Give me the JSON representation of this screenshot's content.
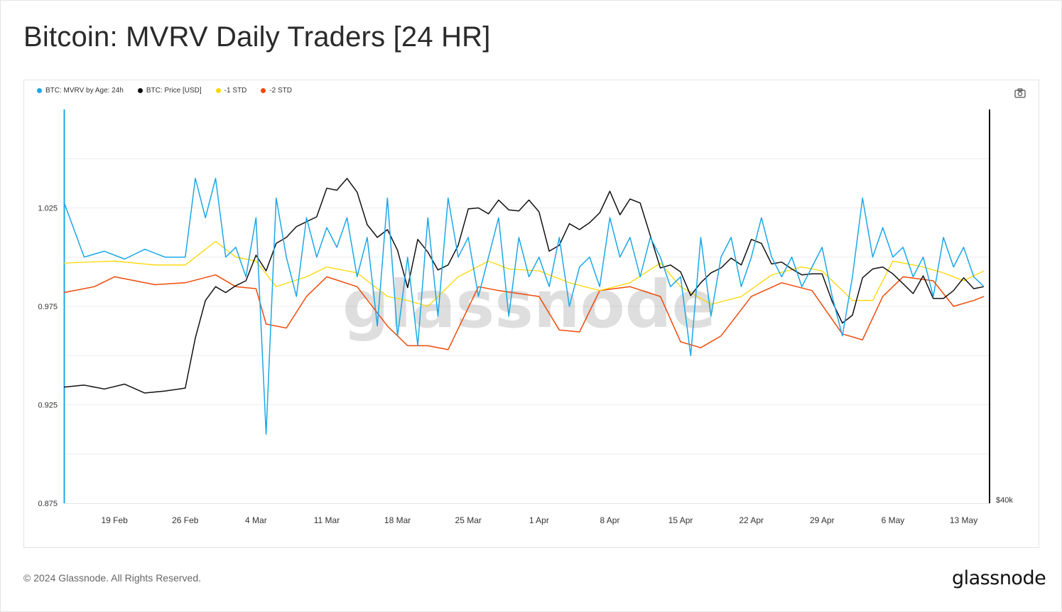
{
  "title": "Bitcoin: MVRV Daily Traders [24 HR]",
  "footer": {
    "copyright": "© 2024 Glassnode. All Rights Reserved.",
    "logo": "glassnode"
  },
  "watermark": "glassnode",
  "legend": [
    {
      "label": "BTC: MVRV by Age: 24h",
      "color": "#1aa8e8"
    },
    {
      "label": "BTC: Price [USD]",
      "color": "#111111"
    },
    {
      "label": "-1 STD",
      "color": "#ffd700"
    },
    {
      "label": "-2 STD",
      "color": "#f04a0a"
    }
  ],
  "icons": {
    "camera": "camera-icon"
  },
  "chart_data": {
    "type": "line",
    "x_ticks": [
      "19 Feb",
      "26 Feb",
      "4 Mar",
      "11 Mar",
      "18 Mar",
      "25 Mar",
      "1 Apr",
      "8 Apr",
      "15 Apr",
      "22 Apr",
      "29 Apr",
      "6 May",
      "13 May"
    ],
    "y_left_ticks": [
      "0.875",
      "0.925",
      "0.975",
      "1.025"
    ],
    "y_left_range": [
      0.875,
      1.075
    ],
    "y_right_ticks": [
      "$40k"
    ],
    "y_right_range": [
      40000,
      80000
    ],
    "x_range": [
      "14 Feb",
      "15 May"
    ],
    "grid": true,
    "legend_position": "top-left",
    "series": [
      {
        "name": "BTC: MVRV by Age: 24h",
        "axis": "left",
        "color": "#1aa8e8",
        "x": [
          "14 Feb",
          "16 Feb",
          "18 Feb",
          "20 Feb",
          "22 Feb",
          "24 Feb",
          "26 Feb",
          "27 Feb",
          "28 Feb",
          "29 Feb",
          "1 Mar",
          "2 Mar",
          "3 Mar",
          "4 Mar",
          "5 Mar",
          "6 Mar",
          "7 Mar",
          "8 Mar",
          "9 Mar",
          "10 Mar",
          "11 Mar",
          "12 Mar",
          "13 Mar",
          "14 Mar",
          "15 Mar",
          "16 Mar",
          "17 Mar",
          "18 Mar",
          "19 Mar",
          "20 Mar",
          "21 Mar",
          "22 Mar",
          "23 Mar",
          "24 Mar",
          "25 Mar",
          "26 Mar",
          "27 Mar",
          "28 Mar",
          "29 Mar",
          "30 Mar",
          "31 Mar",
          "1 Apr",
          "2 Apr",
          "3 Apr",
          "4 Apr",
          "5 Apr",
          "6 Apr",
          "7 Apr",
          "8 Apr",
          "9 Apr",
          "10 Apr",
          "11 Apr",
          "12 Apr",
          "13 Apr",
          "14 Apr",
          "15 Apr",
          "16 Apr",
          "17 Apr",
          "18 Apr",
          "19 Apr",
          "20 Apr",
          "21 Apr",
          "22 Apr",
          "23 Apr",
          "24 Apr",
          "25 Apr",
          "26 Apr",
          "27 Apr",
          "28 Apr",
          "29 Apr",
          "30 Apr",
          "1 May",
          "2 May",
          "3 May",
          "4 May",
          "5 May",
          "6 May",
          "7 May",
          "8 May",
          "9 May",
          "10 May",
          "11 May",
          "12 May",
          "13 May",
          "14 May",
          "15 May"
        ],
        "values": [
          1.028,
          1.0,
          1.003,
          0.999,
          1.004,
          1.0,
          1.0,
          1.04,
          1.02,
          1.04,
          1.0,
          1.005,
          0.99,
          1.02,
          0.91,
          1.03,
          1.0,
          0.98,
          1.02,
          1.0,
          1.015,
          1.005,
          1.02,
          0.99,
          1.01,
          0.965,
          1.03,
          0.96,
          1.0,
          0.955,
          1.02,
          0.97,
          1.03,
          1.0,
          1.01,
          0.98,
          1.0,
          1.02,
          0.97,
          1.01,
          0.99,
          1.0,
          0.985,
          1.01,
          0.975,
          0.995,
          1.0,
          0.985,
          1.02,
          1.0,
          1.01,
          0.99,
          1.01,
          1.0,
          0.985,
          0.99,
          0.95,
          1.01,
          0.97,
          1.0,
          1.01,
          0.985,
          1.0,
          1.02,
          1.0,
          0.99,
          1.0,
          0.985,
          0.995,
          1.005,
          0.98,
          0.96,
          0.99,
          1.03,
          1.0,
          1.015,
          1.0,
          1.005,
          0.99,
          1.0,
          0.98,
          1.01,
          0.995,
          1.005,
          0.99,
          0.985
        ]
      },
      {
        "name": "BTC: Price [USD]",
        "axis": "right",
        "color": "#111111",
        "x": [
          "14 Feb",
          "16 Feb",
          "18 Feb",
          "20 Feb",
          "22 Feb",
          "24 Feb",
          "26 Feb",
          "27 Feb",
          "28 Feb",
          "29 Feb",
          "1 Mar",
          "2 Mar",
          "3 Mar",
          "4 Mar",
          "5 Mar",
          "6 Mar",
          "7 Mar",
          "8 Mar",
          "9 Mar",
          "10 Mar",
          "11 Mar",
          "12 Mar",
          "13 Mar",
          "14 Mar",
          "15 Mar",
          "16 Mar",
          "17 Mar",
          "18 Mar",
          "19 Mar",
          "20 Mar",
          "21 Mar",
          "22 Mar",
          "23 Mar",
          "24 Mar",
          "25 Mar",
          "26 Mar",
          "27 Mar",
          "28 Mar",
          "29 Mar",
          "30 Mar",
          "31 Mar",
          "1 Apr",
          "2 Apr",
          "3 Apr",
          "4 Apr",
          "5 Apr",
          "6 Apr",
          "7 Apr",
          "8 Apr",
          "9 Apr",
          "10 Apr",
          "11 Apr",
          "12 Apr",
          "13 Apr",
          "14 Apr",
          "15 Apr",
          "16 Apr",
          "17 Apr",
          "18 Apr",
          "19 Apr",
          "20 Apr",
          "21 Apr",
          "22 Apr",
          "23 Apr",
          "24 Apr",
          "25 Apr",
          "26 Apr",
          "27 Apr",
          "28 Apr",
          "29 Apr",
          "30 Apr",
          "1 May",
          "2 May",
          "3 May",
          "4 May",
          "5 May",
          "6 May",
          "7 May",
          "8 May",
          "9 May",
          "10 May",
          "11 May",
          "12 May",
          "13 May",
          "14 May",
          "15 May"
        ],
        "values": [
          51800,
          52000,
          51600,
          52100,
          51200,
          51400,
          51700,
          56800,
          60600,
          62000,
          61400,
          62100,
          62600,
          65200,
          63600,
          66400,
          67000,
          68100,
          68600,
          69100,
          72000,
          71800,
          73000,
          71600,
          68300,
          67000,
          67800,
          65700,
          61900,
          66800,
          65500,
          63700,
          64200,
          66200,
          69900,
          70000,
          69400,
          70800,
          69800,
          69700,
          70800,
          69600,
          65600,
          66200,
          68400,
          67800,
          68500,
          69500,
          71700,
          69300,
          70900,
          70500,
          67200,
          63900,
          64200,
          63500,
          61100,
          62400,
          63400,
          63900,
          64900,
          64200,
          66800,
          66400,
          64300,
          64500,
          63800,
          63200,
          63300,
          63300,
          60500,
          58300,
          59100,
          62900,
          63800,
          64000,
          63300,
          62300,
          61300,
          63100,
          60800,
          60800,
          61600,
          62900,
          61800,
          62000
        ]
      },
      {
        "name": "-1 STD",
        "axis": "left",
        "color": "#ffd700",
        "x": [
          "14 Feb",
          "19 Feb",
          "23 Feb",
          "26 Feb",
          "29 Feb",
          "2 Mar",
          "4 Mar",
          "6 Mar",
          "9 Mar",
          "11 Mar",
          "14 Mar",
          "17 Mar",
          "19 Mar",
          "21 Mar",
          "24 Mar",
          "27 Mar",
          "29 Mar",
          "1 Apr",
          "4 Apr",
          "7 Apr",
          "10 Apr",
          "13 Apr",
          "15 Apr",
          "18 Apr",
          "21 Apr",
          "24 Apr",
          "27 Apr",
          "29 Apr",
          "2 May",
          "4 May",
          "6 May",
          "9 May",
          "11 May",
          "13 May",
          "15 May"
        ],
        "values": [
          0.997,
          0.998,
          0.996,
          0.996,
          1.008,
          1.0,
          0.998,
          0.985,
          0.99,
          0.995,
          0.992,
          0.98,
          0.978,
          0.975,
          0.99,
          0.998,
          0.994,
          0.993,
          0.987,
          0.983,
          0.987,
          0.997,
          0.985,
          0.976,
          0.98,
          0.991,
          0.995,
          0.993,
          0.978,
          0.978,
          0.998,
          0.995,
          0.992,
          0.988,
          0.993
        ]
      },
      {
        "name": "-2 STD",
        "axis": "left",
        "color": "#f04a0a",
        "x": [
          "14 Feb",
          "17 Feb",
          "19 Feb",
          "23 Feb",
          "26 Feb",
          "29 Feb",
          "2 Mar",
          "4 Mar",
          "5 Mar",
          "7 Mar",
          "9 Mar",
          "11 Mar",
          "14 Mar",
          "17 Mar",
          "19 Mar",
          "21 Mar",
          "23 Mar",
          "26 Mar",
          "28 Mar",
          "1 Apr",
          "3 Apr",
          "5 Apr",
          "7 Apr",
          "10 Apr",
          "13 Apr",
          "15 Apr",
          "17 Apr",
          "19 Apr",
          "22 Apr",
          "25 Apr",
          "28 Apr",
          "1 May",
          "3 May",
          "5 May",
          "7 May",
          "10 May",
          "12 May",
          "14 May",
          "15 May"
        ],
        "values": [
          0.982,
          0.985,
          0.99,
          0.986,
          0.987,
          0.991,
          0.985,
          0.984,
          0.966,
          0.964,
          0.98,
          0.99,
          0.985,
          0.965,
          0.955,
          0.955,
          0.953,
          0.985,
          0.983,
          0.98,
          0.963,
          0.962,
          0.983,
          0.985,
          0.98,
          0.957,
          0.954,
          0.96,
          0.98,
          0.987,
          0.983,
          0.961,
          0.958,
          0.98,
          0.99,
          0.988,
          0.975,
          0.978,
          0.98
        ]
      }
    ]
  }
}
